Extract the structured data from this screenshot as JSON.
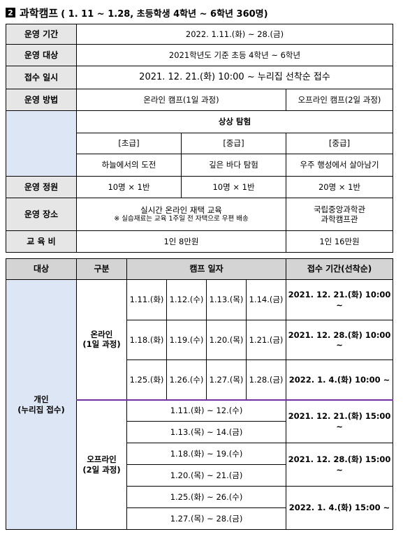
{
  "title": {
    "number": "2",
    "main": "과학캠프",
    "sub": "( 1. 11 ~ 1.28, 초등학생 4학년 ~ 6학년 360명)"
  },
  "info": {
    "period_label": "운영 기간",
    "period_value": "2022. 1.11.(화) ~ 28.(금)",
    "target_label": "운영 대상",
    "target_value": "2021학년도 기준 초등 4학년 ~ 6학년",
    "apply_label": "접수 일시",
    "apply_value": "2021. 12. 21.(화) 10:00 ~ 누리집 선착순 접수",
    "method_label": "운영 방법",
    "method_online": "온라인 캠프(1일 과정)",
    "method_offline": "오프라인 캠프(2일 과정)",
    "theme": "상상 탐험",
    "levels": [
      "[초급]",
      "[중급]",
      "[중급]"
    ],
    "topics": [
      "하늘에서의 도전",
      "깊은 바다 탐험",
      "우주 행성에서 살아남기"
    ],
    "capacity_label": "운영 정원",
    "capacity": [
      "10명 × 1반",
      "10명 × 1반",
      "20명 × 1반"
    ],
    "place_label": "운영 장소",
    "place_online": "실시간 온라인 재택 교육",
    "place_online_note": "※ 실습재료는 교육 1주일 전 자택으로 우편 배송",
    "place_offline_1": "국립중앙과학관",
    "place_offline_2": "과학캠프관",
    "fee_label": "교 육 비",
    "fee_online": "1인 8만원",
    "fee_offline": "1인 16만원"
  },
  "schedule": {
    "headers": {
      "target": "대상",
      "type": "구분",
      "dates": "캠프 일자",
      "apply": "접수 기간(선착순)"
    },
    "target_1": "개인",
    "target_2": "(누리집 접수)",
    "online_1": "온라인",
    "online_2": "(1일 과정)",
    "online_rows": [
      [
        "1.11.(화)",
        "1.12.(수)",
        "1.13.(목)",
        "1.14.(금)"
      ],
      [
        "1.18.(화)",
        "1.19.(수)",
        "1.20.(목)",
        "1.21.(금)"
      ],
      [
        "1.25.(화)",
        "1.26.(수)",
        "1.27.(목)",
        "1.28.(금)"
      ]
    ],
    "online_apply": [
      "2021. 12. 21.(화) 10:00 ~",
      "2021. 12. 28.(화) 10:00 ~",
      "2022. 1. 4.(화) 10:00 ~"
    ],
    "offline_1": "오프라인",
    "offline_2": "(2일 과정)",
    "offline_dates": [
      "1.11.(화) ~ 12.(수)",
      "1.13.(목) ~ 14.(금)",
      "1.18.(화) ~ 19.(수)",
      "1.20.(목) ~ 21.(금)",
      "1.25.(화) ~ 26.(수)",
      "1.27.(목) ~ 28.(금)"
    ],
    "offline_apply": [
      "2021. 12. 21.(화) 15:00 ~",
      "2021. 12. 28.(화) 15:00 ~",
      "2022. 1. 4.(화) 15:00 ~"
    ]
  }
}
